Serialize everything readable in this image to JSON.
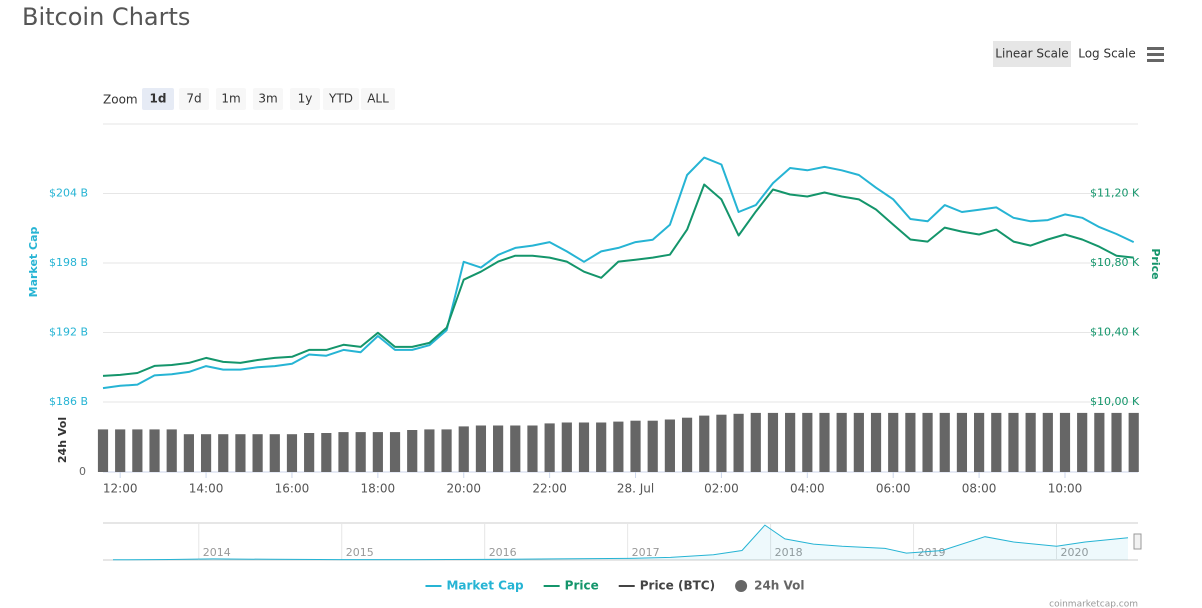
{
  "header": {
    "title": "Bitcoin Charts"
  },
  "controls": {
    "scale_buttons": [
      "Linear Scale",
      "Log Scale"
    ],
    "scale_selected": 0,
    "zoom_label": "Zoom",
    "zoom_buttons": [
      "1d",
      "7d",
      "1m",
      "3m",
      "1y",
      "YTD",
      "ALL"
    ],
    "zoom_selected": 0
  },
  "chart_data": {
    "type": "line",
    "y_label": "Market Cap",
    "y2_label": "Price",
    "vol_label": "24h Vol",
    "grid": true,
    "x": [
      11.6,
      12.0,
      12.4,
      12.8,
      13.2,
      13.6,
      14.0,
      14.4,
      14.8,
      15.2,
      15.6,
      16.0,
      16.4,
      16.8,
      17.2,
      17.6,
      18.0,
      18.4,
      18.8,
      19.2,
      19.6,
      20.0,
      20.4,
      20.8,
      21.2,
      21.6,
      22.0,
      22.4,
      22.8,
      23.2,
      23.6,
      24.0,
      24.4,
      24.8,
      25.2,
      25.6,
      26.0,
      26.4,
      26.8,
      27.2,
      27.6,
      28.0,
      28.4,
      28.8,
      29.2,
      29.6,
      30.0,
      30.4,
      30.8,
      31.2,
      31.6,
      32.0,
      32.4,
      32.8,
      33.2,
      33.6,
      34.0,
      34.4,
      34.8,
      35.2,
      35.6
    ],
    "xlim": [
      11.6,
      35.7
    ],
    "xticks": [
      {
        "value": 12,
        "label": "12:00"
      },
      {
        "value": 14,
        "label": "14:00"
      },
      {
        "value": 16,
        "label": "16:00"
      },
      {
        "value": 18,
        "label": "18:00"
      },
      {
        "value": 20,
        "label": "20:00"
      },
      {
        "value": 22,
        "label": "22:00"
      },
      {
        "value": 24,
        "label": "28. Jul"
      },
      {
        "value": 26,
        "label": "02:00"
      },
      {
        "value": 28,
        "label": "04:00"
      },
      {
        "value": 30,
        "label": "06:00"
      },
      {
        "value": 32,
        "label": "08:00"
      },
      {
        "value": 34,
        "label": "10:00"
      }
    ],
    "ylim": [
      186,
      210
    ],
    "yticks": [
      {
        "value": 186,
        "label": "$186 B"
      },
      {
        "value": 192,
        "label": "$192 B"
      },
      {
        "value": 198,
        "label": "$198 B"
      },
      {
        "value": 204,
        "label": "$204 B"
      }
    ],
    "y2lim": [
      10000,
      11600
    ],
    "y2ticks": [
      {
        "value": 10000,
        "label": "$10,00 K"
      },
      {
        "value": 10400,
        "label": "$10,40 K"
      },
      {
        "value": 10800,
        "label": "$10,80 K"
      },
      {
        "value": 11200,
        "label": "$11,20 K"
      }
    ],
    "vollim": [
      0,
      22
    ],
    "volticks": [
      0
    ],
    "series": [
      {
        "name": "Market Cap",
        "color": "#26b4d4",
        "axis": "y",
        "values": [
          187.2,
          187.4,
          187.5,
          188.3,
          188.4,
          188.6,
          189.1,
          188.8,
          188.8,
          189.0,
          189.1,
          189.3,
          190.1,
          190.0,
          190.5,
          190.3,
          191.7,
          190.5,
          190.5,
          190.9,
          192.2,
          198.1,
          197.6,
          198.7,
          199.3,
          199.5,
          199.8,
          199.0,
          198.1,
          199.0,
          199.3,
          199.8,
          200.0,
          201.3,
          205.6,
          207.1,
          206.5,
          202.4,
          203.0,
          204.9,
          206.2,
          206.0,
          206.3,
          206.0,
          205.6,
          204.5,
          203.5,
          201.8,
          201.6,
          203.0,
          202.4,
          202.6,
          202.8,
          201.9,
          201.6,
          201.7,
          202.2,
          201.9,
          201.1,
          200.5,
          199.8
        ]
      },
      {
        "name": "Price",
        "color": "#14956b",
        "axis": "y2",
        "values": [
          10150,
          10156,
          10167,
          10208,
          10213,
          10225,
          10254,
          10231,
          10225,
          10242,
          10254,
          10260,
          10300,
          10300,
          10329,
          10317,
          10398,
          10317,
          10317,
          10340,
          10427,
          10704,
          10750,
          10808,
          10842,
          10842,
          10831,
          10808,
          10750,
          10715,
          10808,
          10819,
          10831,
          10848,
          10992,
          11252,
          11166,
          10958,
          11096,
          11223,
          11194,
          11183,
          11206,
          11183,
          11166,
          11108,
          11021,
          10935,
          10923,
          11004,
          10981,
          10964,
          10992,
          10923,
          10900,
          10935,
          10964,
          10935,
          10894,
          10842,
          10831
        ]
      },
      {
        "name": "Price (BTC)",
        "color": "#444444",
        "visible": false
      },
      {
        "name": "24h Vol",
        "color": "#666666",
        "type": "column",
        "axis": "vol",
        "values": [
          14.2,
          14.2,
          14.2,
          14.2,
          14.2,
          12.6,
          12.6,
          12.6,
          12.6,
          12.6,
          12.6,
          12.6,
          13.0,
          13.0,
          13.3,
          13.3,
          13.3,
          13.3,
          14.0,
          14.2,
          14.2,
          15.2,
          15.5,
          15.5,
          15.5,
          15.5,
          16.2,
          16.5,
          16.5,
          16.5,
          16.8,
          17.1,
          17.1,
          17.5,
          18.1,
          18.8,
          19.1,
          19.4,
          19.7,
          19.7,
          19.7,
          19.7,
          19.7,
          19.7,
          19.7,
          19.7,
          19.7,
          19.7,
          19.7,
          19.7,
          19.7,
          19.7,
          19.7,
          19.7,
          19.7,
          19.7,
          19.7,
          19.7,
          19.7,
          19.7,
          19.7
        ]
      }
    ],
    "navigator": {
      "color": "#26b4d4",
      "x": [
        2013.4,
        2013.8,
        2014.1,
        2014.5,
        2015.0,
        2015.5,
        2016.0,
        2016.5,
        2017.0,
        2017.3,
        2017.6,
        2017.8,
        2017.96,
        2018.1,
        2018.3,
        2018.5,
        2018.8,
        2018.95,
        2019.2,
        2019.5,
        2019.7,
        2020.0,
        2020.2,
        2020.5
      ],
      "values": [
        1.5,
        5,
        10,
        7,
        3.5,
        3.8,
        6,
        10,
        15,
        25,
        50,
        90,
        330,
        200,
        150,
        130,
        110,
        65,
        90,
        220,
        170,
        130,
        170,
        210
      ],
      "xlim": [
        2013.33,
        2020.57
      ],
      "ylim": [
        0,
        350
      ],
      "xticks": [
        2014,
        2015,
        2016,
        2017,
        2018,
        2019,
        2020
      ]
    },
    "watermark": "coinmarketcap.com"
  }
}
